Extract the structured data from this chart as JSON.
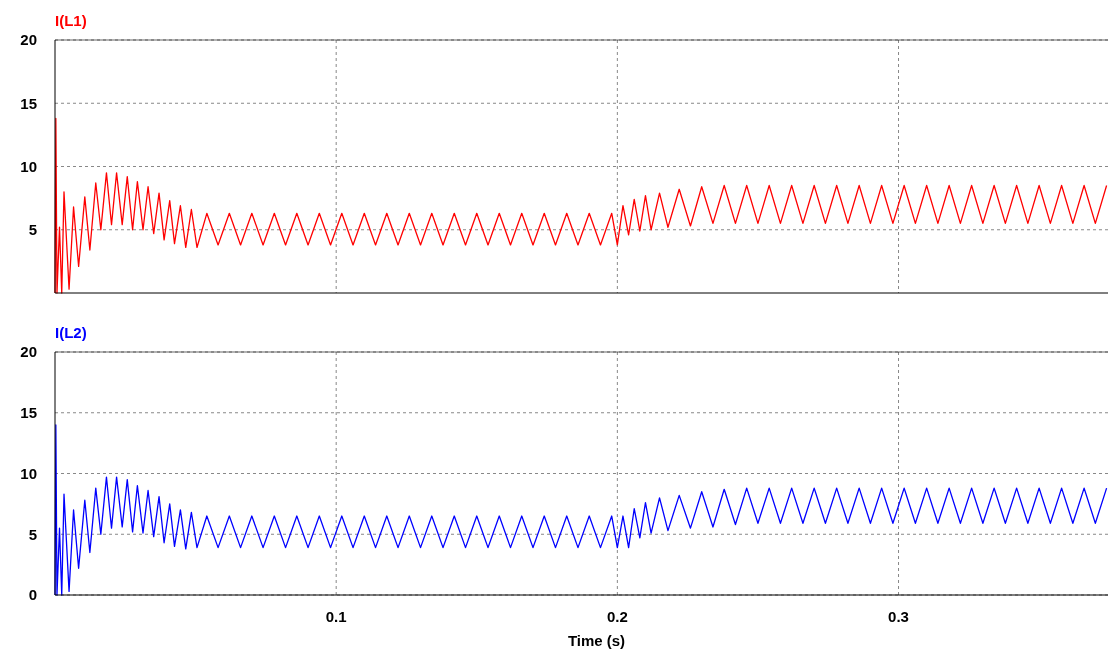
{
  "chart_data": [
    {
      "type": "line",
      "xlim": [
        0,
        0.3745
      ],
      "xticks": [
        0.1,
        0.2,
        0.3
      ],
      "ylim": [
        0,
        20
      ],
      "yticks": [
        5,
        10,
        15,
        20
      ],
      "grid": true,
      "tick_labels": "y",
      "line_style": "solid",
      "series": [
        {
          "name": "I(L1)",
          "color": "#ff0000",
          "x": [
            0,
            0.0003,
            0.0007,
            0.0016,
            0.0024,
            0.0032,
            0.005,
            0.0066,
            0.0084,
            0.0106,
            0.0124,
            0.0145,
            0.0163,
            0.0183,
            0.0201,
            0.0219,
            0.0239,
            0.0257,
            0.0276,
            0.0293,
            0.0313,
            0.0331,
            0.0351,
            0.037,
            0.0388,
            0.0408,
            0.0425,
            0.0446,
            0.0465,
            0.0485,
            0.0505,
            0.054,
            0.058,
            0.062,
            0.066,
            0.07,
            0.074,
            0.078,
            0.082,
            0.086,
            0.09,
            0.094,
            0.098,
            0.102,
            0.106,
            0.11,
            0.114,
            0.118,
            0.122,
            0.126,
            0.13,
            0.134,
            0.138,
            0.142,
            0.146,
            0.15,
            0.154,
            0.158,
            0.162,
            0.166,
            0.17,
            0.174,
            0.178,
            0.182,
            0.186,
            0.19,
            0.194,
            0.198,
            0.2,
            0.202,
            0.204,
            0.206,
            0.208,
            0.21,
            0.212,
            0.215,
            0.218,
            0.222,
            0.226,
            0.23,
            0.234,
            0.238,
            0.242,
            0.246,
            0.25,
            0.254,
            0.258,
            0.262,
            0.266,
            0.27,
            0.274,
            0.278,
            0.282,
            0.286,
            0.29,
            0.294,
            0.298,
            0.302,
            0.306,
            0.31,
            0.314,
            0.318,
            0.322,
            0.326,
            0.33,
            0.334,
            0.338,
            0.342,
            0.346,
            0.35,
            0.354,
            0.358,
            0.362,
            0.366,
            0.37,
            0.374
          ],
          "values": [
            0,
            13.8,
            0,
            5.2,
            0,
            8.0,
            0.3,
            6.8,
            2.1,
            7.6,
            3.4,
            8.7,
            5.0,
            9.5,
            5.4,
            9.5,
            5.4,
            9.2,
            5.0,
            8.8,
            5.0,
            8.4,
            4.7,
            7.9,
            4.2,
            7.3,
            3.9,
            6.9,
            3.6,
            6.6,
            3.6,
            6.3,
            3.8,
            6.3,
            3.8,
            6.3,
            3.8,
            6.3,
            3.8,
            6.3,
            3.8,
            6.3,
            3.8,
            6.3,
            3.8,
            6.3,
            3.8,
            6.3,
            3.8,
            6.3,
            3.8,
            6.3,
            3.8,
            6.3,
            3.8,
            6.3,
            3.8,
            6.3,
            3.8,
            6.3,
            3.8,
            6.3,
            3.8,
            6.3,
            3.8,
            6.3,
            3.8,
            6.3,
            3.8,
            6.9,
            4.6,
            7.4,
            4.9,
            7.7,
            5.0,
            7.9,
            5.2,
            8.2,
            5.3,
            8.4,
            5.5,
            8.5,
            5.5,
            8.5,
            5.5,
            8.5,
            5.5,
            8.5,
            5.5,
            8.5,
            5.5,
            8.5,
            5.5,
            8.5,
            5.5,
            8.5,
            5.5,
            8.5,
            5.5,
            8.5,
            5.5,
            8.5,
            5.5,
            8.5,
            5.5,
            8.5,
            5.5,
            8.5,
            5.5,
            8.5,
            5.5,
            8.5,
            5.5,
            8.5,
            5.5,
            8.5
          ]
        }
      ]
    },
    {
      "type": "line",
      "xlabel": "Time (s)",
      "xlim": [
        0,
        0.3745
      ],
      "xticks": [
        0.1,
        0.2,
        0.3
      ],
      "ylim": [
        0,
        20
      ],
      "yticks": [
        0,
        5,
        10,
        15,
        20
      ],
      "grid": true,
      "line_style": "solid",
      "series": [
        {
          "name": "I(L2)",
          "color": "#0000ff",
          "x": [
            0,
            0.0003,
            0.0007,
            0.0016,
            0.0024,
            0.0032,
            0.005,
            0.0066,
            0.0084,
            0.0106,
            0.0124,
            0.0145,
            0.0163,
            0.0183,
            0.0201,
            0.0219,
            0.0239,
            0.0257,
            0.0276,
            0.0293,
            0.0313,
            0.0331,
            0.0351,
            0.037,
            0.0388,
            0.0408,
            0.0425,
            0.0446,
            0.0465,
            0.0485,
            0.0505,
            0.054,
            0.058,
            0.062,
            0.066,
            0.07,
            0.074,
            0.078,
            0.082,
            0.086,
            0.09,
            0.094,
            0.098,
            0.102,
            0.106,
            0.11,
            0.114,
            0.118,
            0.122,
            0.126,
            0.13,
            0.134,
            0.138,
            0.142,
            0.146,
            0.15,
            0.154,
            0.158,
            0.162,
            0.166,
            0.17,
            0.174,
            0.178,
            0.182,
            0.186,
            0.19,
            0.194,
            0.198,
            0.2,
            0.202,
            0.204,
            0.206,
            0.208,
            0.21,
            0.212,
            0.215,
            0.218,
            0.222,
            0.226,
            0.23,
            0.234,
            0.238,
            0.242,
            0.246,
            0.25,
            0.254,
            0.258,
            0.262,
            0.266,
            0.27,
            0.274,
            0.278,
            0.282,
            0.286,
            0.29,
            0.294,
            0.298,
            0.302,
            0.306,
            0.31,
            0.314,
            0.318,
            0.322,
            0.326,
            0.33,
            0.334,
            0.338,
            0.342,
            0.346,
            0.35,
            0.354,
            0.358,
            0.362,
            0.366,
            0.37,
            0.374
          ],
          "values": [
            0,
            14,
            0,
            5.5,
            0,
            8.3,
            0.3,
            7.0,
            2.2,
            7.8,
            3.5,
            8.8,
            5.0,
            9.7,
            5.5,
            9.7,
            5.6,
            9.5,
            5.2,
            9.0,
            5.1,
            8.6,
            4.8,
            8.1,
            4.3,
            7.5,
            4.0,
            7.0,
            3.8,
            6.8,
            3.9,
            6.5,
            3.9,
            6.5,
            3.9,
            6.5,
            3.9,
            6.5,
            3.9,
            6.5,
            3.9,
            6.5,
            3.9,
            6.5,
            3.9,
            6.5,
            3.9,
            6.5,
            3.9,
            6.5,
            3.9,
            6.5,
            3.9,
            6.5,
            3.9,
            6.5,
            3.9,
            6.5,
            3.9,
            6.5,
            3.9,
            6.5,
            3.9,
            6.5,
            3.9,
            6.5,
            3.9,
            6.5,
            3.9,
            6.5,
            3.9,
            7.1,
            4.7,
            7.6,
            5.1,
            8.0,
            5.3,
            8.2,
            5.5,
            8.5,
            5.6,
            8.7,
            5.8,
            8.8,
            5.9,
            8.8,
            5.9,
            8.8,
            5.9,
            8.8,
            5.9,
            8.8,
            5.9,
            8.8,
            5.9,
            8.8,
            5.9,
            8.8,
            5.9,
            8.8,
            5.9,
            8.8,
            5.9,
            8.8,
            5.9,
            8.8,
            5.9,
            8.8,
            5.9,
            8.8,
            5.9,
            8.8,
            5.9,
            8.8,
            5.9,
            8.8
          ]
        }
      ]
    }
  ]
}
